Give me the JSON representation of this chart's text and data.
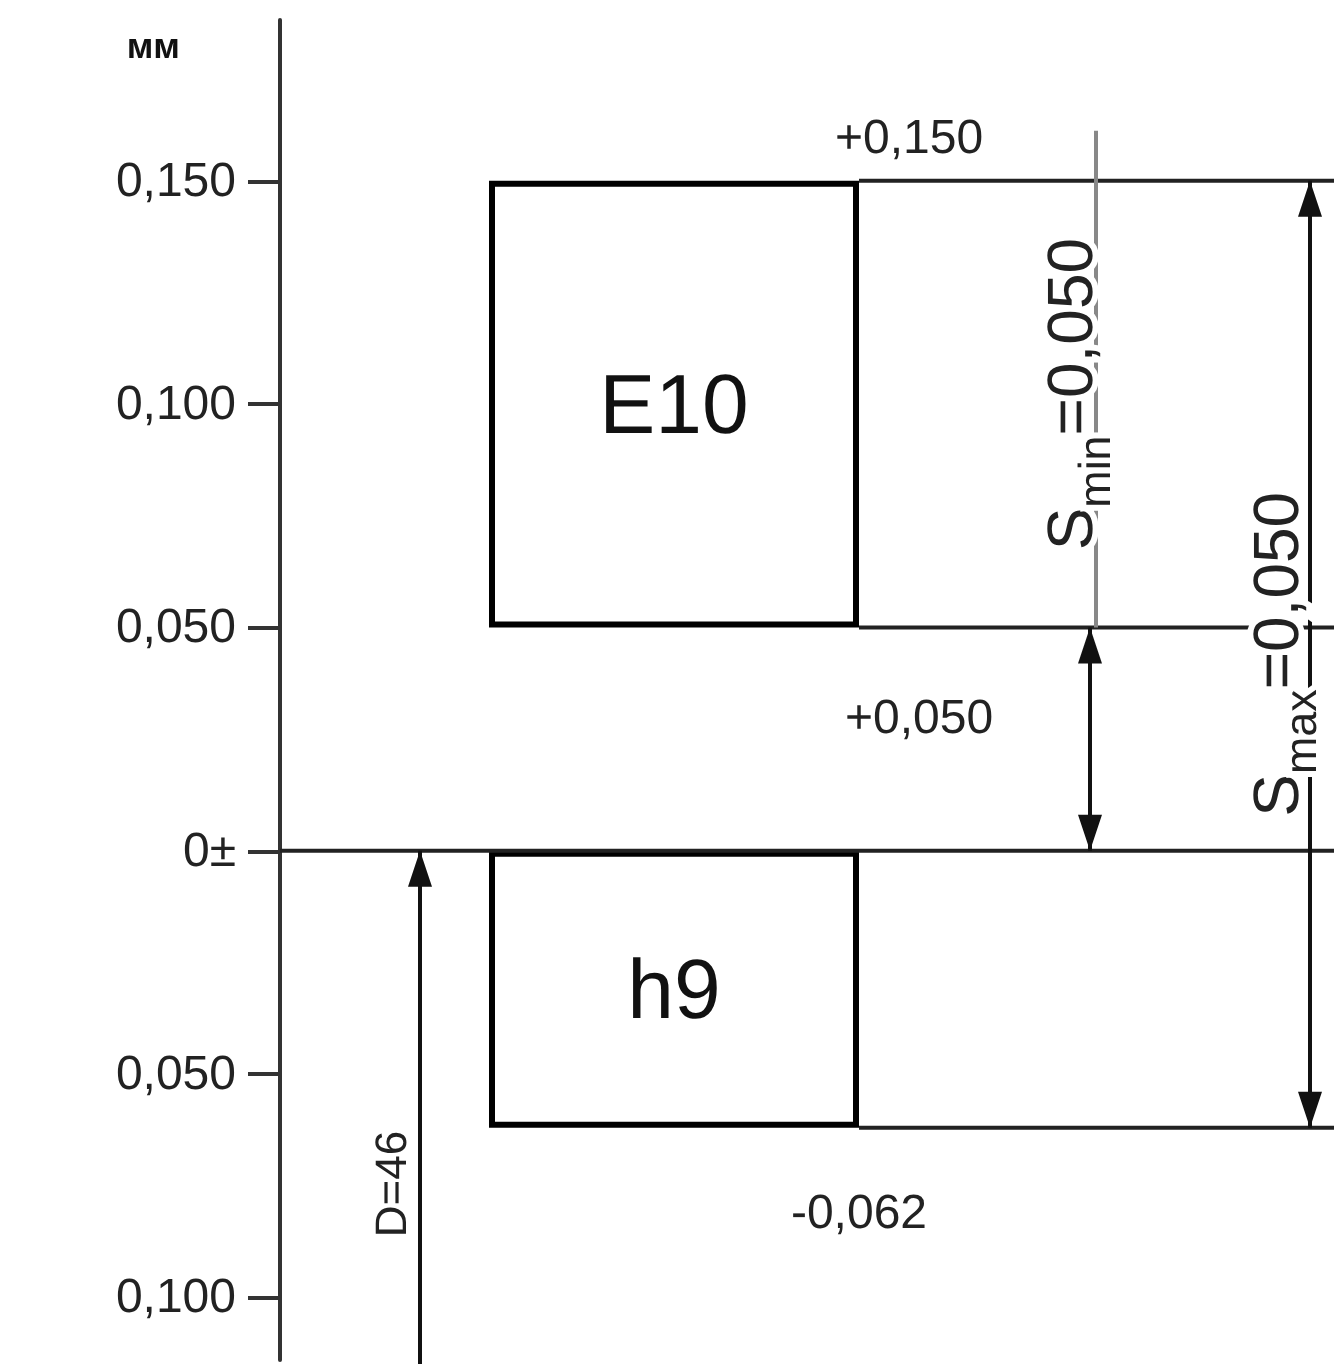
{
  "chart_data": {
    "type": "bar",
    "ylabel": "мм",
    "categories": [
      null
    ],
    "series": [
      {
        "name": "E10",
        "color": "#ffffff",
        "base": [
          0.05
        ],
        "values": [
          0.1
        ]
      },
      {
        "name": "h9",
        "color": "#ffffff",
        "base": [
          -0.062
        ],
        "values": [
          0.062
        ]
      }
    ],
    "ylim": [
      -0.114,
      0.186
    ],
    "yticks": [
      {
        "value": -0.1,
        "label": "0,100"
      },
      {
        "value": -0.05,
        "label": "0,050"
      },
      {
        "value": 0,
        "label": "0±"
      },
      {
        "value": 0.05,
        "label": "0,050"
      },
      {
        "value": 0.1,
        "label": "0,100"
      },
      {
        "value": 0.15,
        "label": "0,150"
      }
    ],
    "ref_lines": [
      {
        "axis": "y",
        "value": 0.15
      },
      {
        "axis": "y",
        "value": 0.05
      },
      {
        "axis": "y",
        "value": 0
      },
      {
        "axis": "y",
        "value": -0.062
      }
    ],
    "annotations": [
      {
        "text": "+0,150",
        "y": 0.15
      },
      {
        "text": "+0,050",
        "y": 0.05
      },
      {
        "text": "-0,062",
        "y": -0.062
      },
      "S$_{min}$=0,050",
      "S$_{max}$=0,050",
      "D=46"
    ],
    "grid": false,
    "legend": false
  }
}
